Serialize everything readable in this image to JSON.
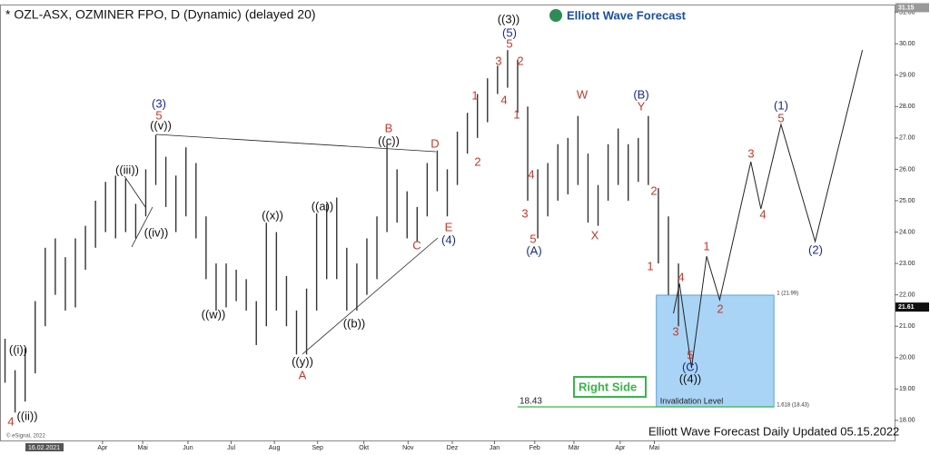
{
  "chart_data": {
    "type": "ohlc",
    "title": "* OZL-ASX, OZMINER FPO, D (Dynamic) (delayed 20)",
    "logo": "Elliott Wave Forecast",
    "footer": "Elliott Wave Forecast Daily Updated 05.15.2022",
    "copyright": "© eSignal, 2022",
    "start_date": "16.02.2021",
    "last_price": {
      "value": 21.61,
      "label": "21.61"
    },
    "top_price": {
      "value": 31.15,
      "label": "31.15"
    },
    "ylim": [
      17.36,
      31.25
    ],
    "xlim": [
      -0.5,
      88.5
    ],
    "yticks": [
      {
        "value": 18,
        "label": "18.00"
      },
      {
        "value": 19,
        "label": "19.00"
      },
      {
        "value": 20,
        "label": "20.00"
      },
      {
        "value": 21,
        "label": "21.00"
      },
      {
        "value": 22,
        "label": "22.00"
      },
      {
        "value": 23,
        "label": "23.00"
      },
      {
        "value": 24,
        "label": "24.00"
      },
      {
        "value": 25,
        "label": "25.00"
      },
      {
        "value": 26,
        "label": "26.00"
      },
      {
        "value": 27,
        "label": "27.00"
      },
      {
        "value": 28,
        "label": "28.00"
      },
      {
        "value": 29,
        "label": "29.00"
      },
      {
        "value": 30,
        "label": "30.00"
      },
      {
        "value": 31,
        "label": "31.00"
      }
    ],
    "xticks": [
      {
        "value": 9.7,
        "label": "Apr"
      },
      {
        "value": 13.7,
        "label": "Mai"
      },
      {
        "value": 18.2,
        "label": "Jun"
      },
      {
        "value": 22.5,
        "label": "Jul"
      },
      {
        "value": 26.8,
        "label": "Aug"
      },
      {
        "value": 31.1,
        "label": "Sep"
      },
      {
        "value": 35.7,
        "label": "Okt"
      },
      {
        "value": 40.1,
        "label": "Nov"
      },
      {
        "value": 44.5,
        "label": "Dez"
      },
      {
        "value": 48.7,
        "label": "Jan"
      },
      {
        "value": 52.7,
        "label": "Feb"
      },
      {
        "value": 56.6,
        "label": "Mär"
      },
      {
        "value": 61.2,
        "label": "Apr"
      },
      {
        "value": 64.6,
        "label": "Mai"
      }
    ],
    "bar_color": "#333333",
    "bars": [
      {
        "low": 19.2,
        "high": 20.6
      },
      {
        "low": 18.25,
        "high": 19.6
      },
      {
        "low": 18.6,
        "high": 20.3
      },
      {
        "low": 19.5,
        "high": 21.8
      },
      {
        "low": 21.0,
        "high": 23.5
      },
      {
        "low": 22.0,
        "high": 23.8
      },
      {
        "low": 21.5,
        "high": 23.2
      },
      {
        "low": 21.6,
        "high": 23.8
      },
      {
        "low": 22.8,
        "high": 24.2
      },
      {
        "low": 23.5,
        "high": 25.0
      },
      {
        "low": 24.0,
        "high": 25.6
      },
      {
        "low": 23.8,
        "high": 25.8
      },
      {
        "low": 24.0,
        "high": 25.7
      },
      {
        "low": 23.8,
        "high": 24.9
      },
      {
        "low": 24.5,
        "high": 26.0
      },
      {
        "low": 25.5,
        "high": 27.1
      },
      {
        "low": 24.8,
        "high": 26.4
      },
      {
        "low": 24.0,
        "high": 25.8
      },
      {
        "low": 24.5,
        "high": 26.7
      },
      {
        "low": 23.8,
        "high": 26.2
      },
      {
        "low": 22.5,
        "high": 24.5
      },
      {
        "low": 21.5,
        "high": 23.0
      },
      {
        "low": 21.6,
        "high": 23.0
      },
      {
        "low": 21.8,
        "high": 22.8
      },
      {
        "low": 21.5,
        "high": 22.5
      },
      {
        "low": 20.4,
        "high": 21.8
      },
      {
        "low": 21.0,
        "high": 24.3
      },
      {
        "low": 21.5,
        "high": 24.0
      },
      {
        "low": 21.0,
        "high": 22.6
      },
      {
        "low": 20.1,
        "high": 21.5
      },
      {
        "low": 20.1,
        "high": 22.2
      },
      {
        "low": 21.5,
        "high": 24.6
      },
      {
        "low": 22.5,
        "high": 24.9
      },
      {
        "low": 22.5,
        "high": 25.1
      },
      {
        "low": 21.5,
        "high": 23.5
      },
      {
        "low": 21.5,
        "high": 23.0
      },
      {
        "low": 22.0,
        "high": 23.8
      },
      {
        "low": 22.5,
        "high": 24.5
      },
      {
        "low": 24.0,
        "high": 26.8
      },
      {
        "low": 24.3,
        "high": 26.0
      },
      {
        "low": 23.8,
        "high": 25.3
      },
      {
        "low": 23.7,
        "high": 24.8
      },
      {
        "low": 24.5,
        "high": 26.2
      },
      {
        "low": 25.3,
        "high": 26.6
      },
      {
        "low": 24.5,
        "high": 26.0
      },
      {
        "low": 25.5,
        "high": 27.2
      },
      {
        "low": 26.5,
        "high": 27.8
      },
      {
        "low": 27.0,
        "high": 28.4
      },
      {
        "low": 27.5,
        "high": 28.9
      },
      {
        "low": 28.4,
        "high": 29.3
      },
      {
        "low": 28.6,
        "high": 29.8
      },
      {
        "low": 27.8,
        "high": 29.5
      },
      {
        "low": 25.0,
        "high": 28.0
      },
      {
        "low": 23.8,
        "high": 26.0
      },
      {
        "low": 24.5,
        "high": 26.2
      },
      {
        "low": 25.0,
        "high": 26.8
      },
      {
        "low": 25.2,
        "high": 27.0
      },
      {
        "low": 25.5,
        "high": 27.7
      },
      {
        "low": 24.3,
        "high": 26.5
      },
      {
        "low": 24.2,
        "high": 25.5
      },
      {
        "low": 25.0,
        "high": 26.8
      },
      {
        "low": 25.5,
        "high": 27.3
      },
      {
        "low": 25.0,
        "high": 26.8
      },
      {
        "low": 25.6,
        "high": 27.0
      },
      {
        "low": 25.5,
        "high": 27.7
      },
      {
        "low": 23.0,
        "high": 25.4
      },
      {
        "low": 22.0,
        "high": 24.5
      },
      {
        "low": 21.0,
        "high": 23.0
      }
    ],
    "projection": {
      "x": [
        66.5,
        67.1,
        68.3,
        69.8,
        71.1,
        74.2,
        75.2,
        77.2,
        80.6,
        85.3
      ],
      "y": [
        21.41,
        22.36,
        19.67,
        23.23,
        21.84,
        26.24,
        24.74,
        27.43,
        23.7,
        29.8
      ]
    },
    "zone": {
      "start": 64.8,
      "end": 76.5,
      "color": "#a9d4f5",
      "top": {
        "value": 21.99,
        "label": "1 (21.99)"
      },
      "bottom": {
        "value": 18.43,
        "label": "1.618 (18.43)"
      }
    },
    "invalidation": {
      "value": 18.43,
      "label": "18.43",
      "text": "Invalidation Level",
      "color": "#39b54a",
      "start": 51.0
    },
    "right_side": "Right Side",
    "wave_labels": [
      {
        "text": "4",
        "color": "#c0392b"
      },
      {
        "text": "((i))",
        "color": "#111"
      },
      {
        "text": "((ii))",
        "color": "#111"
      },
      {
        "text": "((iii))",
        "color": "#111"
      },
      {
        "text": "((iv))",
        "color": "#111"
      },
      {
        "text": "(3)",
        "color": "#1a2a8a"
      },
      {
        "text": "5",
        "color": "#c0392b"
      },
      {
        "text": "((v))",
        "color": "#111"
      },
      {
        "text": "((w))",
        "color": "#111"
      },
      {
        "text": "((x))",
        "color": "#111"
      },
      {
        "text": "((y))",
        "color": "#111"
      },
      {
        "text": "A",
        "color": "#c0392b"
      },
      {
        "text": "((a))",
        "color": "#111"
      },
      {
        "text": "((b))",
        "color": "#111"
      },
      {
        "text": "((c))",
        "color": "#111"
      },
      {
        "text": "B",
        "color": "#c0392b"
      },
      {
        "text": "D",
        "color": "#c0392b"
      },
      {
        "text": "C",
        "color": "#c0392b"
      },
      {
        "text": "E",
        "color": "#c0392b"
      },
      {
        "text": "(4)",
        "color": "#1a2a8a"
      },
      {
        "text": "1",
        "color": "#c0392b"
      },
      {
        "text": "2",
        "color": "#c0392b"
      },
      {
        "text": "3",
        "color": "#c0392b"
      },
      {
        "text": "4",
        "color": "#c0392b"
      },
      {
        "text": "5",
        "color": "#c0392b"
      },
      {
        "text": "(5)",
        "color": "#1a2a8a"
      },
      {
        "text": "((3))",
        "color": "#111"
      },
      {
        "text": "2",
        "color": "#c0392b"
      },
      {
        "text": "1",
        "color": "#c0392b"
      },
      {
        "text": "4",
        "color": "#c0392b"
      },
      {
        "text": "3",
        "color": "#c0392b"
      },
      {
        "text": "5",
        "color": "#c0392b"
      },
      {
        "text": "(A)",
        "color": "#1a2a8a"
      },
      {
        "text": "W",
        "color": "#c0392b"
      },
      {
        "text": "X",
        "color": "#c0392b"
      },
      {
        "text": "(B)",
        "color": "#1a2a8a"
      },
      {
        "text": "Y",
        "color": "#c0392b"
      },
      {
        "text": "2",
        "color": "#c0392b"
      },
      {
        "text": "1",
        "color": "#c0392b"
      },
      {
        "text": "4",
        "color": "#c0392b"
      },
      {
        "text": "3",
        "color": "#c0392b"
      },
      {
        "text": "5",
        "color": "#c0392b"
      },
      {
        "text": "(C)",
        "color": "#1a2a8a"
      },
      {
        "text": "((4))",
        "color": "#111"
      },
      {
        "text": "1",
        "color": "#c0392b"
      },
      {
        "text": "2",
        "color": "#c0392b"
      },
      {
        "text": "3",
        "color": "#c0392b"
      },
      {
        "text": "4",
        "color": "#c0392b"
      },
      {
        "text": "5",
        "color": "#c0392b"
      },
      {
        "text": "(1)",
        "color": "#1a2a8a"
      },
      {
        "text": "(2)",
        "color": "#1a2a8a"
      }
    ]
  }
}
